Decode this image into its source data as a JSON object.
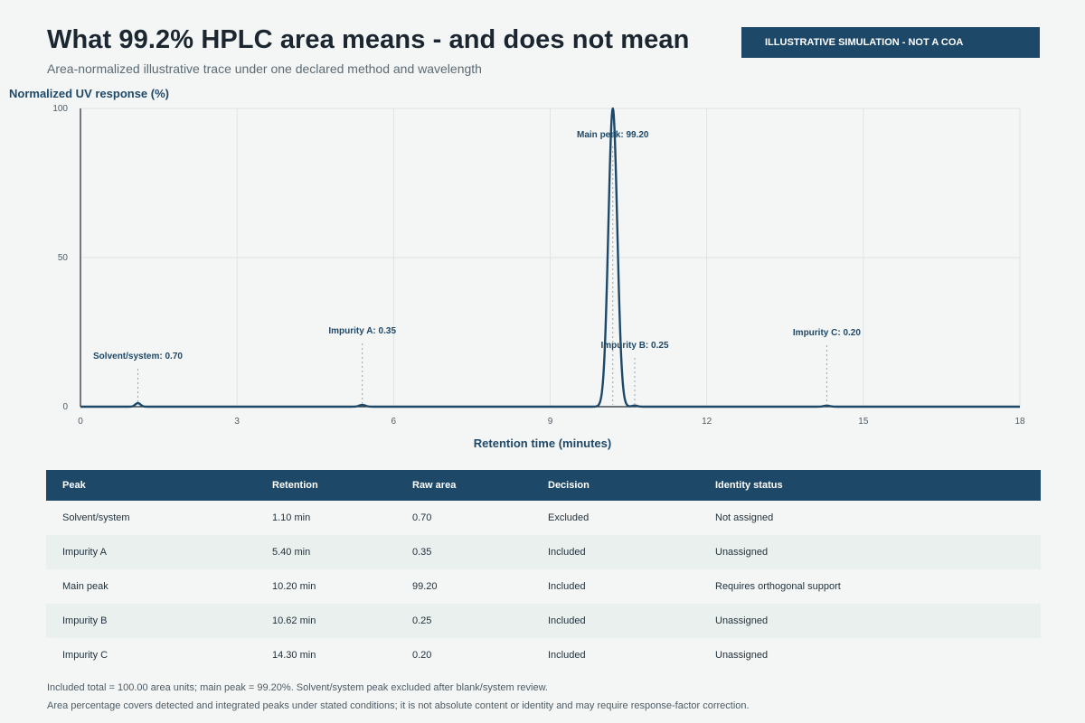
{
  "header": {
    "title": "What 99.2% HPLC area means - and does not mean",
    "subtitle": "Area-normalized illustrative trace under one declared method and wavelength",
    "badge": "ILLUSTRATIVE SIMULATION - NOT A COA"
  },
  "colors": {
    "trace": "#1e4868",
    "grid": "#dfe3e2",
    "accent": "#1e4868"
  },
  "chart_data": {
    "type": "line",
    "xlabel": "Retention time (minutes)",
    "ylabel": "Normalized UV response (%)",
    "xlim": [
      0,
      18
    ],
    "ylim": [
      0,
      100
    ],
    "xticks": [
      0,
      3,
      6,
      9,
      12,
      15,
      18
    ],
    "yticks": [
      0,
      50,
      100
    ],
    "grid": true,
    "peaks": [
      {
        "name": "Solvent/system",
        "rt": 1.1,
        "height": 1.2,
        "label": "Solvent/system: 0.70"
      },
      {
        "name": "Impurity A",
        "rt": 5.4,
        "height": 0.6,
        "label": "Impurity A: 0.35"
      },
      {
        "name": "Main peak",
        "rt": 10.2,
        "height": 100,
        "label": "Main peak: 99.20"
      },
      {
        "name": "Impurity B",
        "rt": 10.62,
        "height": 0.4,
        "label": "Impurity B: 0.25"
      },
      {
        "name": "Impurity C",
        "rt": 14.3,
        "height": 0.35,
        "label": "Impurity C: 0.20"
      }
    ]
  },
  "table": {
    "headers": [
      "Peak",
      "Retention",
      "Raw area",
      "Decision",
      "Identity status"
    ],
    "rows": [
      [
        "Solvent/system",
        "1.10 min",
        "0.70",
        "Excluded",
        "Not assigned"
      ],
      [
        "Impurity A",
        "5.40 min",
        "0.35",
        "Included",
        "Unassigned"
      ],
      [
        "Main peak",
        "10.20 min",
        "99.20",
        "Included",
        "Requires orthogonal support"
      ],
      [
        "Impurity B",
        "10.62 min",
        "0.25",
        "Included",
        "Unassigned"
      ],
      [
        "Impurity C",
        "14.30 min",
        "0.20",
        "Included",
        "Unassigned"
      ]
    ]
  },
  "notes": {
    "line1": "Included total = 100.00 area units; main peak = 99.20%. Solvent/system peak excluded after blank/system review.",
    "line2": "Area percentage covers detected and integrated peaks under stated conditions; it is not absolute content or identity and may require response-factor correction."
  }
}
